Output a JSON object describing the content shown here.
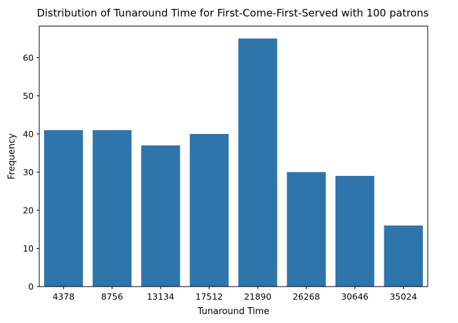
{
  "chart_data": {
    "type": "bar",
    "title": "Distribution of Tunaround Time for First-Come-First-Served with 100 patrons",
    "xlabel": "Tunaround Time",
    "ylabel": "Frequency",
    "categories": [
      "4378",
      "8756",
      "13134",
      "17512",
      "21890",
      "26268",
      "30646",
      "35024"
    ],
    "values": [
      41,
      41,
      37,
      40,
      65,
      30,
      29,
      16
    ],
    "ylim": [
      0,
      68.25
    ],
    "yticks": [
      0,
      10,
      20,
      30,
      40,
      50,
      60
    ],
    "grid": false,
    "bar_color": "#2e75ac"
  }
}
